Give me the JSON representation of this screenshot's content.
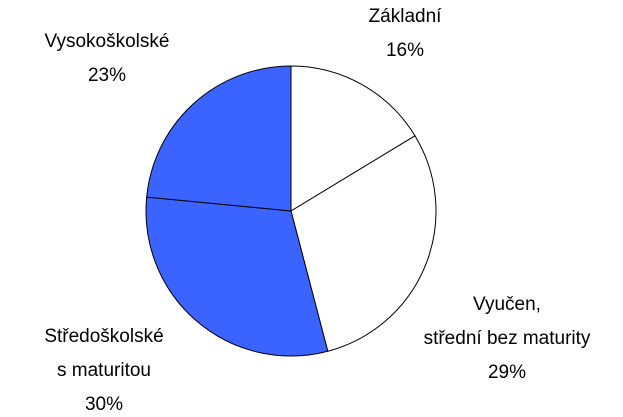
{
  "chart_data": {
    "type": "pie",
    "categories": [
      "Základní",
      "Vyučen,\nstřední bez maturity",
      "Středoškolské\ns maturitou",
      "Vysokoškolské"
    ],
    "values": [
      16,
      29,
      30,
      23
    ],
    "value_labels": [
      "16%",
      "29%",
      "30%",
      "23%"
    ],
    "colors": [
      "#ffffff",
      "#ffffff",
      "#3a63ff",
      "#3a63ff"
    ]
  }
}
